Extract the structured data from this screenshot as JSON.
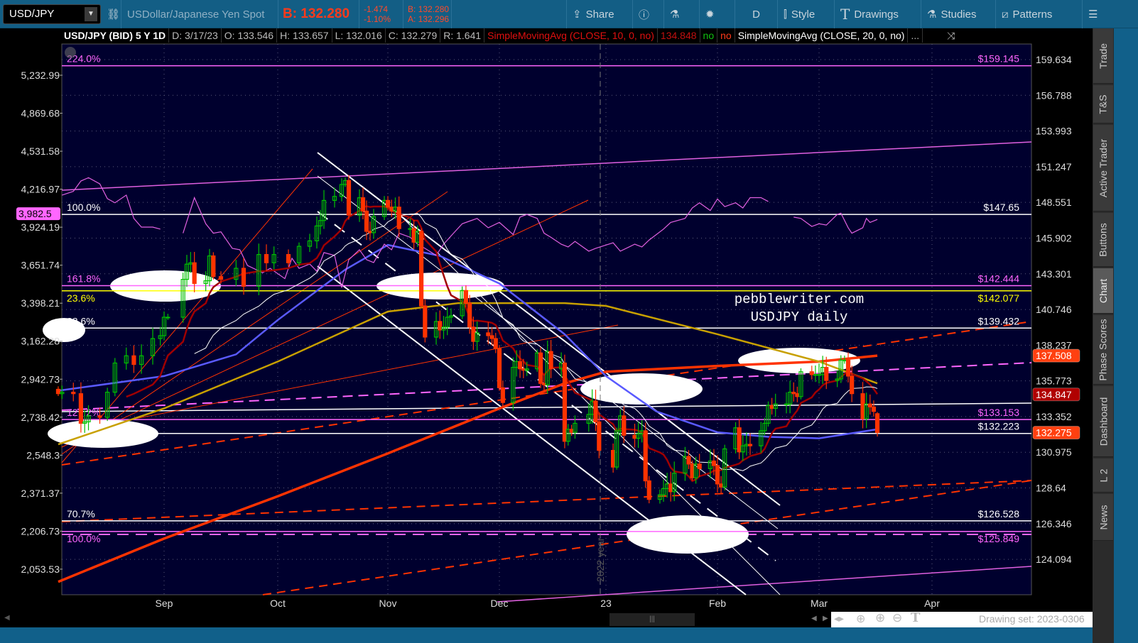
{
  "toolbar": {
    "symbol": "USD/JPY",
    "description": "USDollar/Japanese Yen Spot",
    "bid_big": "B: 132.280",
    "change": "-1.474",
    "change_pct": "-1.10%",
    "bid": "B: 132.280",
    "ask": "A: 132.296",
    "share": "Share",
    "aggregation": "D",
    "style": "Style",
    "drawings": "Drawings",
    "studies": "Studies",
    "patterns": "Patterns"
  },
  "info": {
    "title": "USD/JPY (BID) 5 Y 1D",
    "date": "D: 3/17/23",
    "open": "O: 133.546",
    "high": "H: 133.657",
    "low": "L: 132.016",
    "close": "C: 132.279",
    "range": "R: 1.641",
    "study1": "SimpleMovingAvg (CLOSE, 10, 0, no)",
    "study1_value": "134.848",
    "flag_no1": "no",
    "flag_no2": "no",
    "study2": "SimpleMovingAvg (CLOSE, 20, 0, no)",
    "more": "..."
  },
  "sidebar": {
    "tabs": [
      "Trade",
      "T&S",
      "Active Trader",
      "Buttons",
      "Chart",
      "Phase Scores",
      "Dashboard",
      "L 2",
      "News"
    ],
    "selected": "Chart"
  },
  "bottom": {
    "drawing_set": "Drawing set: 2023-0306"
  },
  "watermark": {
    "line1": "pebblewriter.com",
    "line2": "USDJPY daily"
  },
  "year_marker": "2022 year",
  "colors": {
    "up": "#00c000",
    "down": "#ff3300",
    "sma10": "#a00000",
    "sma20": "#ffffff",
    "blue_ma": "#5a5aff",
    "yellow_ma": "#c8a000",
    "red_ma": "#ff3300",
    "compare": "#e060e0",
    "bg": "#00002e"
  },
  "chart_data": {
    "type": "candlestick",
    "price_axis": {
      "scale": "log",
      "ticks": [
        "159.634",
        "156.788",
        "153.993",
        "151.247",
        "148.551",
        "145.902",
        "143.301",
        "140.746",
        "138.237",
        "135.773",
        "133.352",
        "130.975",
        "128.64",
        "126.346",
        "124.094"
      ],
      "range": [
        122.6,
        161.8
      ]
    },
    "compare_axis": {
      "scale": "log",
      "ticks": [
        "5,232.99",
        "4,869.68",
        "4,531.58",
        "4,216.97",
        "3,924.19",
        "3,651.74",
        "3,398.21",
        "3,162.28",
        "2,942.73",
        "2,738.42",
        "2,548.3",
        "2,371.37",
        "2,206.73",
        "2,053.53"
      ],
      "current": "3,982.5"
    },
    "x_labels": [
      [
        "Sep",
        "2022-09-01"
      ],
      [
        "Oct",
        "2022-10-01"
      ],
      [
        "Nov",
        "2022-11-01"
      ],
      [
        "Dec",
        "2022-12-01"
      ],
      [
        "23",
        "2023-01-01"
      ],
      [
        "Feb",
        "2023-02-01"
      ],
      [
        "Mar",
        "2023-03-01"
      ],
      [
        "Apr",
        "2023-04-01"
      ]
    ],
    "last_bar": {
      "date": "2023-03-17",
      "open": 133.546,
      "high": 133.657,
      "low": 132.016,
      "close": 132.279
    },
    "closes": [
      [
        "2022-08-04",
        134.9
      ],
      [
        "2022-08-05",
        135.0
      ],
      [
        "2022-08-08",
        134.9
      ],
      [
        "2022-08-10",
        132.9
      ],
      [
        "2022-08-11",
        133.0
      ],
      [
        "2022-08-12",
        133.4
      ],
      [
        "2022-08-15",
        133.3
      ],
      [
        "2022-08-17",
        135.0
      ],
      [
        "2022-08-19",
        137.0
      ],
      [
        "2022-08-22",
        137.5
      ],
      [
        "2022-08-24",
        136.9
      ],
      [
        "2022-08-26",
        137.5
      ],
      [
        "2022-08-29",
        138.7
      ],
      [
        "2022-08-31",
        138.9
      ],
      [
        "2022-09-01",
        140.2
      ],
      [
        "2022-09-02",
        140.2
      ],
      [
        "2022-09-06",
        142.9
      ],
      [
        "2022-09-07",
        144.0
      ],
      [
        "2022-09-08",
        144.1
      ],
      [
        "2022-09-09",
        142.6
      ],
      [
        "2022-09-12",
        142.8
      ],
      [
        "2022-09-13",
        144.6
      ],
      [
        "2022-09-14",
        143.1
      ],
      [
        "2022-09-16",
        142.9
      ],
      [
        "2022-09-20",
        143.7
      ],
      [
        "2022-09-22",
        142.4
      ],
      [
        "2022-09-26",
        144.7
      ],
      [
        "2022-09-28",
        144.1
      ],
      [
        "2022-09-30",
        144.7
      ],
      [
        "2022-10-04",
        144.1
      ],
      [
        "2022-10-07",
        145.3
      ],
      [
        "2022-10-10",
        145.7
      ],
      [
        "2022-10-12",
        146.8
      ],
      [
        "2022-10-13",
        147.2
      ],
      [
        "2022-10-14",
        148.7
      ],
      [
        "2022-10-17",
        149.0
      ],
      [
        "2022-10-19",
        149.9
      ],
      [
        "2022-10-20",
        150.2
      ],
      [
        "2022-10-21",
        147.6
      ],
      [
        "2022-10-24",
        148.9
      ],
      [
        "2022-10-25",
        147.9
      ],
      [
        "2022-10-26",
        146.4
      ],
      [
        "2022-10-27",
        146.3
      ],
      [
        "2022-10-28",
        147.5
      ],
      [
        "2022-10-31",
        148.7
      ],
      [
        "2022-11-01",
        148.2
      ],
      [
        "2022-11-02",
        147.9
      ],
      [
        "2022-11-03",
        148.2
      ],
      [
        "2022-11-04",
        146.6
      ],
      [
        "2022-11-07",
        146.6
      ],
      [
        "2022-11-08",
        145.6
      ],
      [
        "2022-11-09",
        146.4
      ],
      [
        "2022-11-10",
        141.0
      ],
      [
        "2022-11-11",
        138.8
      ],
      [
        "2022-11-14",
        139.9
      ],
      [
        "2022-11-15",
        139.3
      ],
      [
        "2022-11-16",
        139.5
      ],
      [
        "2022-11-17",
        140.2
      ],
      [
        "2022-11-18",
        140.3
      ],
      [
        "2022-11-21",
        142.1
      ],
      [
        "2022-11-22",
        141.2
      ],
      [
        "2022-11-23",
        139.5
      ],
      [
        "2022-11-24",
        138.5
      ],
      [
        "2022-11-25",
        139.1
      ],
      [
        "2022-11-28",
        138.9
      ],
      [
        "2022-11-29",
        138.7
      ],
      [
        "2022-11-30",
        138.0
      ],
      [
        "2022-12-01",
        135.3
      ],
      [
        "2022-12-02",
        134.3
      ],
      [
        "2022-12-05",
        136.7
      ],
      [
        "2022-12-06",
        137.1
      ],
      [
        "2022-12-07",
        136.6
      ],
      [
        "2022-12-08",
        136.5
      ],
      [
        "2022-12-09",
        136.6
      ],
      [
        "2022-12-12",
        137.7
      ],
      [
        "2022-12-13",
        135.6
      ],
      [
        "2022-12-14",
        135.5
      ],
      [
        "2022-12-15",
        137.8
      ],
      [
        "2022-12-16",
        136.6
      ],
      [
        "2022-12-19",
        137.0
      ],
      [
        "2022-12-20",
        131.7
      ],
      [
        "2022-12-21",
        132.5
      ],
      [
        "2022-12-22",
        132.3
      ],
      [
        "2022-12-23",
        132.9
      ],
      [
        "2022-12-27",
        133.5
      ],
      [
        "2022-12-28",
        134.4
      ],
      [
        "2022-12-29",
        133.0
      ],
      [
        "2022-12-30",
        131.1
      ],
      [
        "2023-01-03",
        130.0
      ],
      [
        "2023-01-04",
        132.4
      ],
      [
        "2023-01-05",
        133.4
      ],
      [
        "2023-01-06",
        132.1
      ],
      [
        "2023-01-09",
        131.9
      ],
      [
        "2023-01-10",
        132.2
      ],
      [
        "2023-01-11",
        132.4
      ],
      [
        "2023-01-12",
        129.1
      ],
      [
        "2023-01-13",
        127.9
      ],
      [
        "2023-01-16",
        128.2
      ],
      [
        "2023-01-17",
        128.6
      ],
      [
        "2023-01-18",
        128.9
      ],
      [
        "2023-01-19",
        128.4
      ],
      [
        "2023-01-20",
        129.6
      ],
      [
        "2023-01-23",
        130.7
      ],
      [
        "2023-01-24",
        130.2
      ],
      [
        "2023-01-25",
        129.3
      ],
      [
        "2023-01-26",
        130.2
      ],
      [
        "2023-01-27",
        129.9
      ],
      [
        "2023-01-30",
        130.4
      ],
      [
        "2023-01-31",
        130.1
      ],
      [
        "2023-02-01",
        128.9
      ],
      [
        "2023-02-02",
        128.7
      ],
      [
        "2023-02-03",
        131.2
      ],
      [
        "2023-02-06",
        132.6
      ],
      [
        "2023-02-07",
        131.0
      ],
      [
        "2023-02-08",
        131.4
      ],
      [
        "2023-02-09",
        131.5
      ],
      [
        "2023-02-10",
        131.4
      ],
      [
        "2023-02-13",
        132.4
      ],
      [
        "2023-02-14",
        132.9
      ],
      [
        "2023-02-15",
        134.1
      ],
      [
        "2023-02-16",
        133.9
      ],
      [
        "2023-02-17",
        134.2
      ],
      [
        "2023-02-20",
        134.2
      ],
      [
        "2023-02-21",
        135.0
      ],
      [
        "2023-02-22",
        134.9
      ],
      [
        "2023-02-23",
        134.7
      ],
      [
        "2023-02-24",
        136.4
      ],
      [
        "2023-02-27",
        136.2
      ],
      [
        "2023-02-28",
        136.2
      ],
      [
        "2023-03-01",
        136.2
      ],
      [
        "2023-03-02",
        136.7
      ],
      [
        "2023-03-03",
        135.8
      ],
      [
        "2023-03-06",
        135.9
      ],
      [
        "2023-03-07",
        137.2
      ],
      [
        "2023-03-08",
        137.2
      ],
      [
        "2023-03-09",
        136.1
      ],
      [
        "2023-03-10",
        134.9
      ],
      [
        "2023-03-13",
        133.2
      ],
      [
        "2023-03-14",
        134.2
      ],
      [
        "2023-03-15",
        134.0
      ],
      [
        "2023-03-16",
        133.7
      ],
      [
        "2023-03-17",
        132.28
      ]
    ],
    "ma_blue": [
      [
        "2022-08-04",
        135.1
      ],
      [
        "2022-09-01",
        136.1
      ],
      [
        "2022-09-20",
        137.6
      ],
      [
        "2022-10-01",
        140.0
      ],
      [
        "2022-10-20",
        143.6
      ],
      [
        "2022-11-01",
        145.4
      ],
      [
        "2022-11-15",
        144.6
      ],
      [
        "2022-12-01",
        142.6
      ],
      [
        "2022-12-20",
        139.0
      ],
      [
        "2023-01-01",
        136.1
      ],
      [
        "2023-01-15",
        133.7
      ],
      [
        "2023-02-01",
        132.3
      ],
      [
        "2023-02-15",
        132.0
      ],
      [
        "2023-03-01",
        131.9
      ],
      [
        "2023-03-17",
        132.5
      ]
    ],
    "ma_yellow": [
      [
        "2022-08-04",
        131.5
      ],
      [
        "2022-09-01",
        133.9
      ],
      [
        "2022-10-01",
        137.1
      ],
      [
        "2022-11-01",
        140.6
      ],
      [
        "2022-11-20",
        141.2
      ],
      [
        "2022-12-20",
        141.2
      ],
      [
        "2023-01-01",
        141.0
      ],
      [
        "2023-02-01",
        139.0
      ],
      [
        "2023-03-01",
        137.1
      ],
      [
        "2023-03-17",
        135.6
      ]
    ],
    "ma_red": [
      [
        "2022-08-04",
        122.7
      ],
      [
        "2022-09-01",
        125.4
      ],
      [
        "2022-10-01",
        128.1
      ],
      [
        "2022-11-01",
        130.9
      ],
      [
        "2022-12-01",
        133.9
      ],
      [
        "2022-12-20",
        135.6
      ],
      [
        "2023-01-01",
        136.4
      ],
      [
        "2023-02-01",
        136.8
      ],
      [
        "2023-03-01",
        137.1
      ],
      [
        "2023-03-17",
        137.508
      ]
    ],
    "compare_series": [
      [
        "2022-08-05",
        4170
      ],
      [
        "2022-08-08",
        4200
      ],
      [
        "2022-08-10",
        4283
      ],
      [
        "2022-08-12",
        4310
      ],
      [
        "2022-08-15",
        4260
      ],
      [
        "2022-08-17",
        4142
      ],
      [
        "2022-08-19",
        4110
      ],
      [
        "2022-08-22",
        4170
      ],
      [
        "2022-08-24",
        3990
      ],
      [
        "2022-08-26",
        3925
      ],
      [
        "2022-08-29",
        3925
      ],
      [
        "2022-08-31",
        3910
      ],
      null,
      [
        "2022-09-06",
        3880
      ],
      [
        "2022-09-09",
        4150
      ],
      [
        "2022-09-12",
        3950
      ],
      [
        "2022-09-14",
        3880
      ],
      [
        "2022-09-16",
        3890
      ],
      [
        "2022-09-19",
        3770
      ],
      [
        "2022-09-21",
        3760
      ],
      [
        "2022-09-23",
        3650
      ],
      [
        "2022-09-27",
        3600
      ],
      [
        "2022-09-29",
        3630
      ],
      [
        "2022-10-03",
        3560
      ],
      [
        "2022-10-05",
        3700
      ],
      [
        "2022-10-07",
        3630
      ],
      [
        "2022-10-10",
        3660
      ],
      [
        "2022-10-12",
        3610
      ],
      [
        "2022-10-14",
        3740
      ],
      [
        "2022-10-17",
        3720
      ],
      [
        "2022-10-19",
        3500
      ],
      [
        "2022-10-21",
        3690
      ],
      [
        "2022-10-24",
        3760
      ],
      [
        "2022-10-26",
        3690
      ],
      [
        "2022-10-28",
        3670
      ],
      [
        "2022-10-31",
        3800
      ],
      [
        "2022-11-02",
        3760
      ],
      [
        "2022-11-04",
        3880
      ],
      [
        "2022-11-07",
        3850
      ],
      [
        "2022-11-09",
        3800
      ],
      [
        "2022-11-11",
        3770
      ],
      [
        "2022-11-14",
        3720
      ],
      [
        "2022-11-16",
        3800
      ],
      [
        "2022-11-18",
        3860
      ],
      [
        "2022-11-21",
        3950
      ],
      [
        "2022-11-23",
        3970
      ],
      [
        "2022-11-25",
        3990
      ],
      [
        "2022-11-28",
        3920
      ],
      [
        "2022-12-01",
        3960
      ],
      [
        "2022-12-05",
        3870
      ],
      [
        "2022-12-07",
        4000
      ],
      [
        "2022-12-09",
        4020
      ],
      [
        "2022-12-12",
        3990
      ],
      [
        "2022-12-14",
        3880
      ],
      [
        "2022-12-16",
        3850
      ],
      [
        "2022-12-19",
        3800
      ],
      [
        "2022-12-21",
        3780
      ],
      [
        "2022-12-23",
        3820
      ],
      [
        "2022-12-27",
        3750
      ],
      [
        "2022-12-29",
        3770
      ],
      [
        "2023-01-03",
        3810
      ],
      [
        "2023-01-05",
        3750
      ],
      [
        "2023-01-09",
        3800
      ],
      [
        "2023-01-11",
        3780
      ],
      [
        "2023-01-13",
        3830
      ],
      [
        "2023-01-17",
        3910
      ],
      [
        "2023-01-19",
        3960
      ],
      [
        "2023-01-23",
        3990
      ],
      [
        "2023-01-25",
        4070
      ],
      [
        "2023-01-27",
        4110
      ],
      [
        "2023-01-30",
        4050
      ],
      [
        "2023-02-01",
        4140
      ],
      [
        "2023-02-03",
        4080
      ],
      [
        "2023-02-06",
        4110
      ],
      [
        "2023-02-08",
        4070
      ],
      [
        "2023-02-10",
        4150
      ],
      [
        "2023-02-13",
        4150
      ],
      [
        "2023-02-15",
        4120
      ],
      null,
      [
        "2023-02-22",
        4000
      ],
      [
        "2023-02-24",
        3990
      ],
      [
        "2023-02-27",
        3930
      ],
      [
        "2023-03-01",
        3950
      ],
      [
        "2023-03-03",
        3940
      ],
      [
        "2023-03-06",
        4020
      ],
      [
        "2023-03-07",
        4030
      ],
      [
        "2023-03-09",
        3920
      ],
      [
        "2023-03-10",
        3880
      ],
      [
        "2023-03-13",
        3920
      ],
      [
        "2023-03-14",
        3990
      ],
      [
        "2023-03-15",
        3960
      ],
      [
        "2023-03-17",
        3982.5
      ]
    ],
    "levels": [
      {
        "pct": "224.0%",
        "price": 159.145,
        "label": "$159.145",
        "color": "#ff66ff"
      },
      {
        "pct": "100.0%",
        "price": 147.65,
        "label": "$147.65",
        "color": "#ffffff"
      },
      {
        "pct": "161.8%",
        "price": 142.444,
        "label": "$142.444",
        "color": "#ff66ff"
      },
      {
        "pct": "23.6%",
        "price": 142.077,
        "label": "$142.077",
        "color": "#ffff00"
      },
      {
        "pct": "88.6%",
        "price": 139.432,
        "label": "$139.432",
        "color": "#ffffff"
      },
      {
        "pct": "127.2%",
        "price": 133.153,
        "label": "$133.153",
        "color": "#ff66ff"
      },
      {
        "pct": "",
        "price": 132.223,
        "label": "$132.223",
        "color": "#ffffff"
      },
      {
        "pct": "70.7%",
        "price": 126.528,
        "label": "$126.528",
        "color": "#ffffff"
      },
      {
        "pct": "100.0%",
        "price": 125.849,
        "label": "$125.849",
        "color": "#ff66ff"
      }
    ],
    "price_tags": [
      {
        "value": "137.508",
        "color": "#ff4010"
      },
      {
        "value": "134.847",
        "color": "#b00000"
      },
      {
        "value": "132.275",
        "color": "#ff4010"
      }
    ]
  }
}
